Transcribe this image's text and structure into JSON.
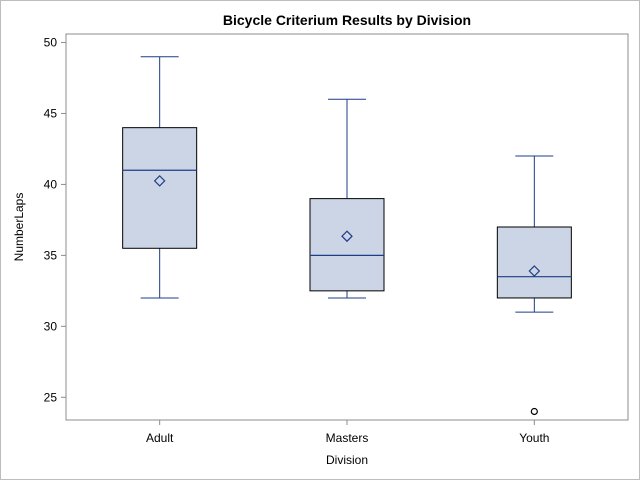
{
  "chart_data": {
    "type": "box",
    "title": "Bicycle Criterium Results by Division",
    "xlabel": "Division",
    "ylabel": "NumberLaps",
    "ylim": [
      23.4,
      50.6
    ],
    "yticks": [
      25,
      30,
      35,
      40,
      45,
      50
    ],
    "grid": false,
    "legend": "none",
    "categories": [
      "Adult",
      "Masters",
      "Youth"
    ],
    "boxes": [
      {
        "category": "Adult",
        "min": 32,
        "q1": 35.5,
        "median": 41,
        "q3": 44,
        "max": 49,
        "mean": 40.25,
        "outliers": []
      },
      {
        "category": "Masters",
        "min": 32,
        "q1": 32.5,
        "median": 35,
        "q3": 39,
        "max": 46,
        "mean": 36.35,
        "outliers": []
      },
      {
        "category": "Youth",
        "min": 31,
        "q1": 32,
        "median": 33.5,
        "q3": 37,
        "max": 42,
        "mean": 33.9,
        "outliers": [
          24
        ]
      }
    ],
    "colors": {
      "box_fill": "#cbd5e5",
      "box_edge": "#000000",
      "line": "#1f3c88",
      "axis": "#8c8c8c"
    }
  }
}
